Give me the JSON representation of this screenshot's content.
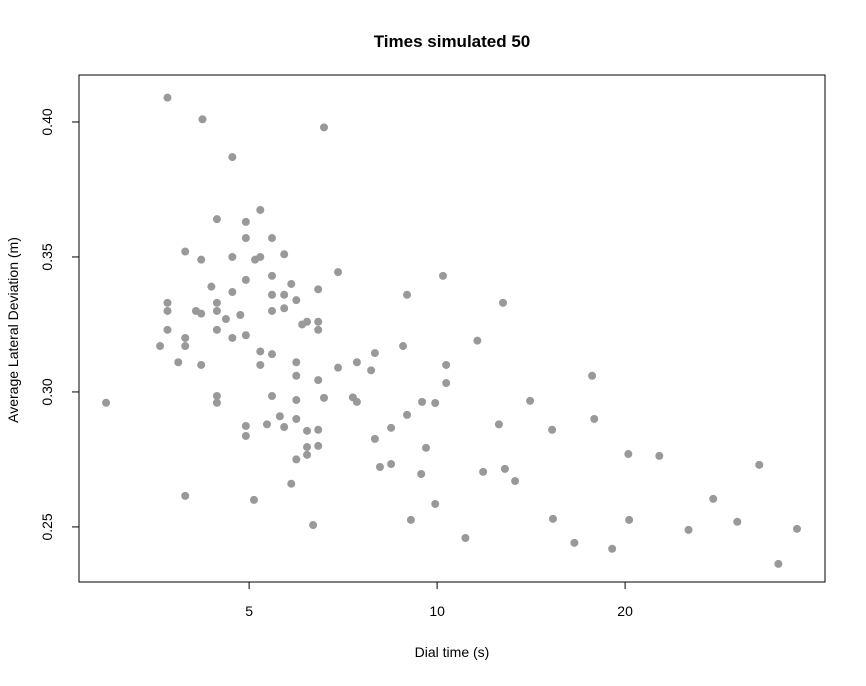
{
  "chart_data": {
    "type": "scatter",
    "title": "Times simulated  50",
    "x_label": "Dial time (s)",
    "y_label": "Average Lateral Deviation (m)",
    "log_x": true,
    "color": "#999999",
    "xlim": [
      2.67,
      41.8
    ],
    "ylim": [
      0.2296,
      0.4174
    ],
    "xticks": [
      5,
      10,
      20
    ],
    "yticks": [
      0.25,
      {
        "value": 0.3,
        "label": "0.30"
      },
      0.35,
      {
        "value": 0.4,
        "label": "0.40"
      }
    ],
    "x": [
      2.95,
      3.6,
      3.7,
      3.7,
      3.7,
      3.7,
      3.85,
      3.95,
      3.95,
      3.95,
      3.95,
      4.11,
      4.19,
      4.19,
      4.19,
      4.21,
      4.35,
      4.44,
      4.44,
      4.44,
      4.44,
      4.44,
      4.44,
      4.59,
      4.7,
      4.7,
      4.7,
      4.7,
      4.84,
      4.94,
      4.94,
      4.94,
      4.94,
      4.94,
      4.94,
      5.09,
      5.11,
      5.21,
      5.21,
      5.21,
      5.21,
      5.34,
      5.44,
      5.44,
      5.44,
      5.44,
      5.44,
      5.44,
      5.6,
      5.69,
      5.69,
      5.69,
      5.69,
      5.84,
      5.84,
      5.95,
      5.95,
      5.95,
      5.95,
      5.95,
      5.95,
      6.08,
      6.19,
      6.19,
      6.19,
      6.19,
      6.33,
      6.45,
      6.45,
      6.45,
      6.45,
      6.45,
      6.45,
      6.59,
      6.59,
      6.94,
      6.94,
      7.33,
      7.44,
      7.44,
      7.84,
      7.95,
      7.95,
      8.1,
      8.44,
      8.44,
      8.82,
      8.95,
      8.95,
      9.08,
      9.43,
      9.46,
      9.6,
      9.93,
      9.93,
      10.22,
      10.34,
      10.34,
      11.1,
      11.6,
      11.85,
      12.56,
      12.75,
      12.84,
      13.33,
      14.09,
      15.28,
      15.33,
      16.59,
      17.71,
      17.85,
      19.07,
      20.24,
      20.3,
      22.69,
      25.27,
      27.68,
      30.25,
      32.8,
      35.2,
      37.7
    ],
    "y": [
      0.296,
      0.317,
      0.409,
      0.333,
      0.323,
      0.33,
      0.311,
      0.352,
      0.32,
      0.317,
      0.2615,
      0.33,
      0.349,
      0.329,
      0.31,
      0.401,
      0.339,
      0.364,
      0.333,
      0.33,
      0.323,
      0.2985,
      0.296,
      0.327,
      0.387,
      0.35,
      0.337,
      0.32,
      0.3285,
      0.363,
      0.357,
      0.3415,
      0.321,
      0.2874,
      0.2837,
      0.26,
      0.349,
      0.3674,
      0.35,
      0.315,
      0.31,
      0.288,
      0.357,
      0.343,
      0.336,
      0.33,
      0.314,
      0.2985,
      0.291,
      0.351,
      0.336,
      0.331,
      0.287,
      0.34,
      0.266,
      0.334,
      0.311,
      0.306,
      0.297,
      0.29,
      0.275,
      0.325,
      0.326,
      0.2856,
      0.2796,
      0.2767,
      0.2507,
      0.338,
      0.326,
      0.323,
      0.3044,
      0.286,
      0.28,
      0.398,
      0.2978,
      0.3444,
      0.309,
      0.298,
      0.311,
      0.2963,
      0.308,
      0.3144,
      0.2826,
      0.2722,
      0.2867,
      0.2733,
      0.317,
      0.336,
      0.2915,
      0.2526,
      0.2696,
      0.2963,
      0.2793,
      0.2959,
      0.2585,
      0.343,
      0.31,
      0.3033,
      0.2459,
      0.319,
      0.2704,
      0.288,
      0.333,
      0.2715,
      0.267,
      0.2967,
      0.286,
      0.253,
      0.2441,
      0.306,
      0.29,
      0.2419,
      0.277,
      0.2526,
      0.2763,
      0.2489,
      0.2604,
      0.2519,
      0.273,
      0.2363,
      0.2493
    ]
  }
}
